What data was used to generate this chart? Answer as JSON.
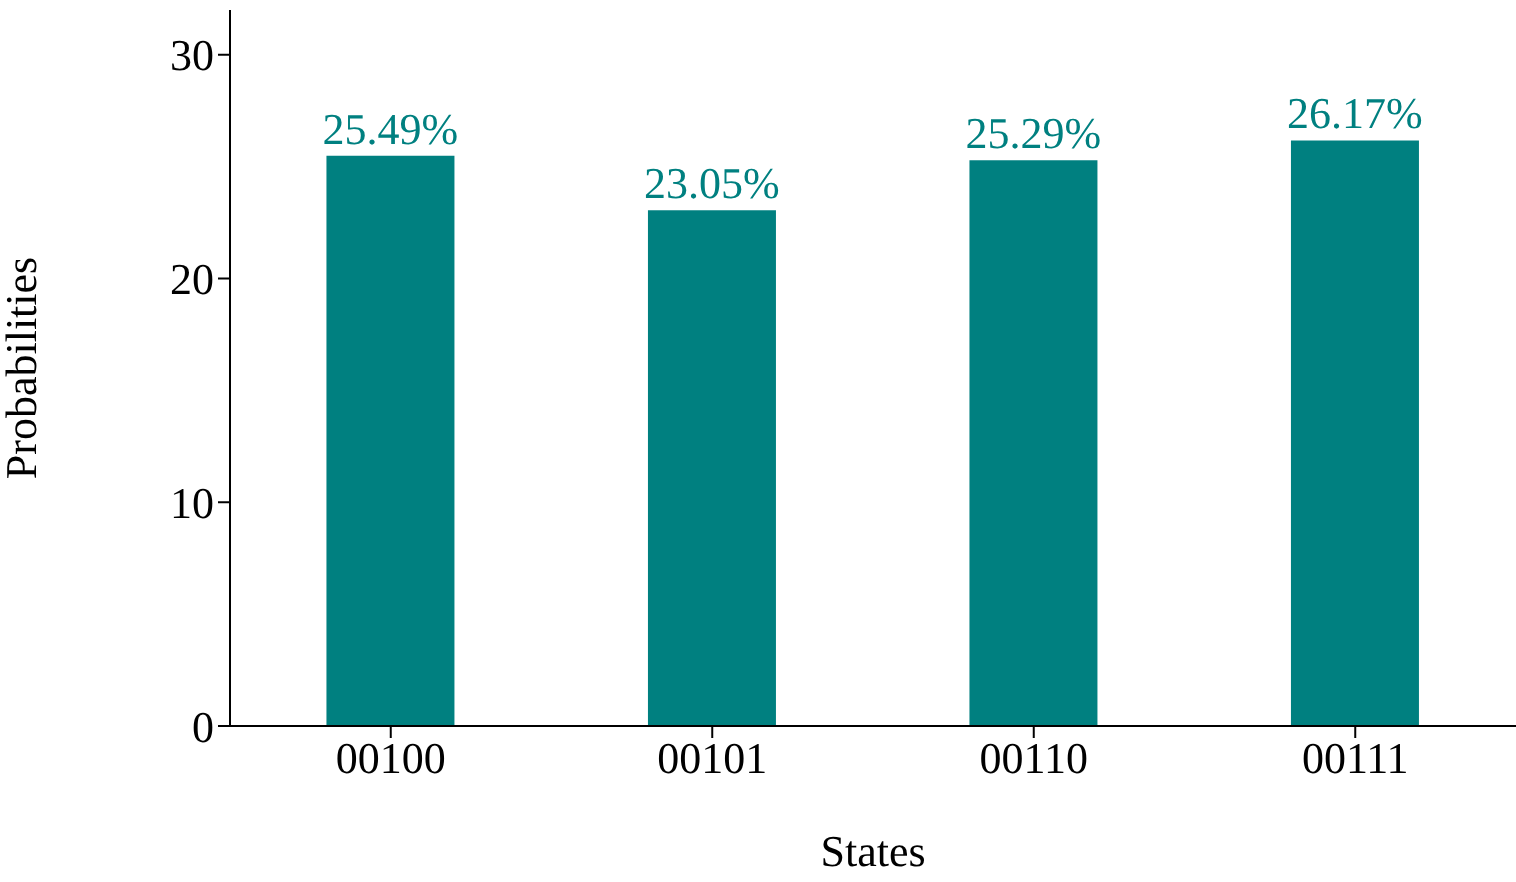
{
  "chart_data": {
    "type": "bar",
    "xlabel": "States",
    "ylabel": "Probabilities",
    "categories": [
      "00100",
      "00101",
      "00110",
      "00111"
    ],
    "values": [
      25.49,
      23.05,
      25.29,
      26.17
    ],
    "value_labels": [
      "25.49%",
      "23.05%",
      "25.29%",
      "26.17%"
    ],
    "color": "#008080",
    "ylim": [
      0,
      32
    ],
    "yticks": [
      0,
      10,
      20,
      30
    ],
    "grid": false,
    "legend": false
  }
}
